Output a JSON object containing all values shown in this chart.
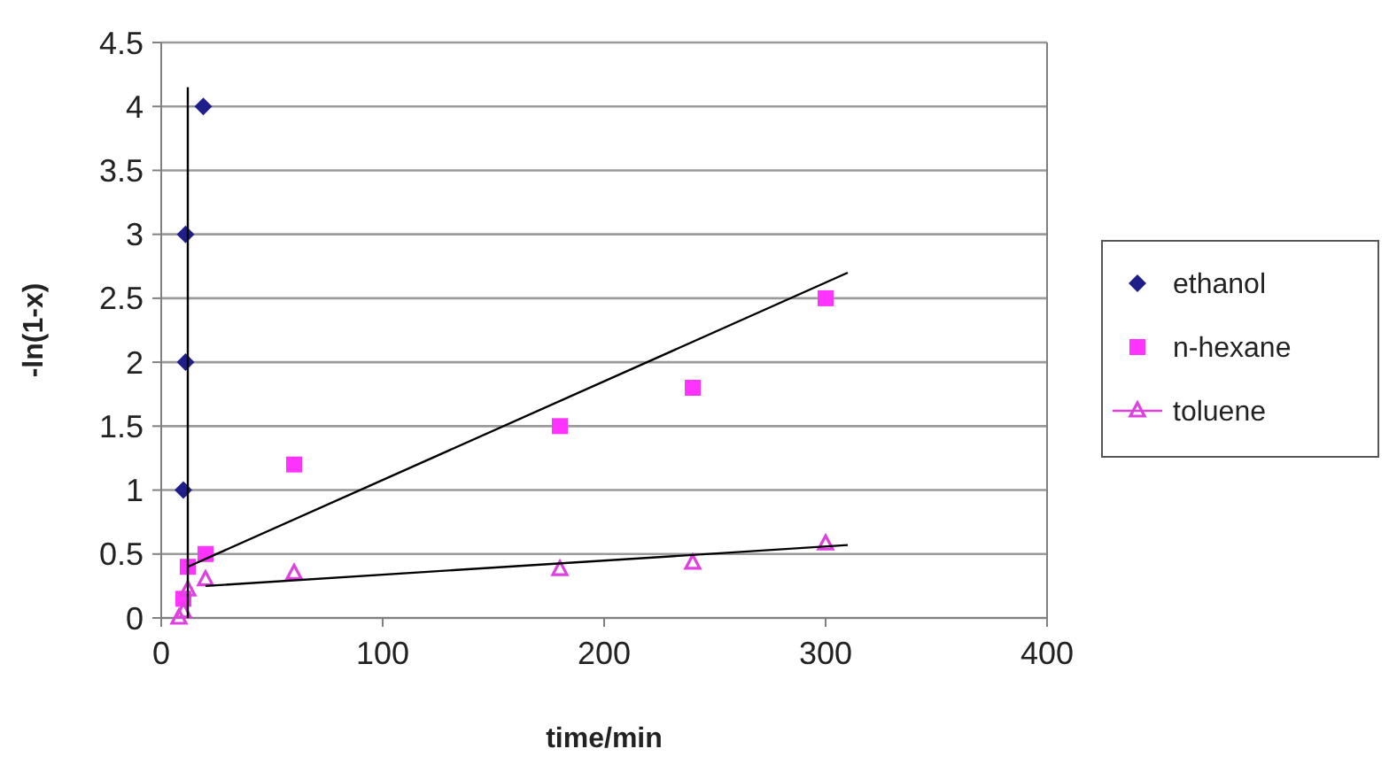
{
  "chart_data": {
    "type": "scatter",
    "xlabel": "time/min",
    "ylabel": "-ln(1-x)",
    "xlim": [
      0,
      400
    ],
    "xticks": [
      0,
      100,
      200,
      300,
      400
    ],
    "ylim": [
      0,
      4.5
    ],
    "yticks": [
      0,
      0.5,
      1,
      1.5,
      2,
      2.5,
      3,
      3.5,
      4,
      4.5
    ],
    "grid": "y",
    "legend": "right",
    "series": [
      {
        "name": "ethanol",
        "color": "#1f1f8c",
        "marker": "diamond",
        "x": [
          10,
          11,
          11,
          19
        ],
        "values": [
          1,
          2,
          3,
          4
        ]
      },
      {
        "name": "n-hexane",
        "color": "#ff33ff",
        "marker": "square",
        "x": [
          10,
          12,
          20,
          60,
          180,
          240,
          300
        ],
        "values": [
          0.15,
          0.4,
          0.5,
          1.2,
          1.5,
          1.8,
          2.5
        ]
      },
      {
        "name": "toluene",
        "color": "#e040e0",
        "marker": "triangle",
        "x": [
          8,
          10,
          12,
          20,
          60,
          180,
          240,
          300
        ],
        "values": [
          0,
          0.05,
          0.22,
          0.3,
          0.35,
          0.38,
          0.43,
          0.58
        ]
      },
      {
        "type": "line",
        "color": "#000000",
        "marker": "none",
        "x": [
          12,
          12
        ],
        "values": [
          0,
          4.15
        ]
      },
      {
        "type": "line",
        "color": "#000000",
        "marker": "none",
        "x": [
          12,
          310
        ],
        "values": [
          0.4,
          2.7
        ]
      },
      {
        "type": "line",
        "color": "#000000",
        "marker": "none",
        "x": [
          20,
          310
        ],
        "values": [
          0.25,
          0.57
        ]
      }
    ]
  }
}
